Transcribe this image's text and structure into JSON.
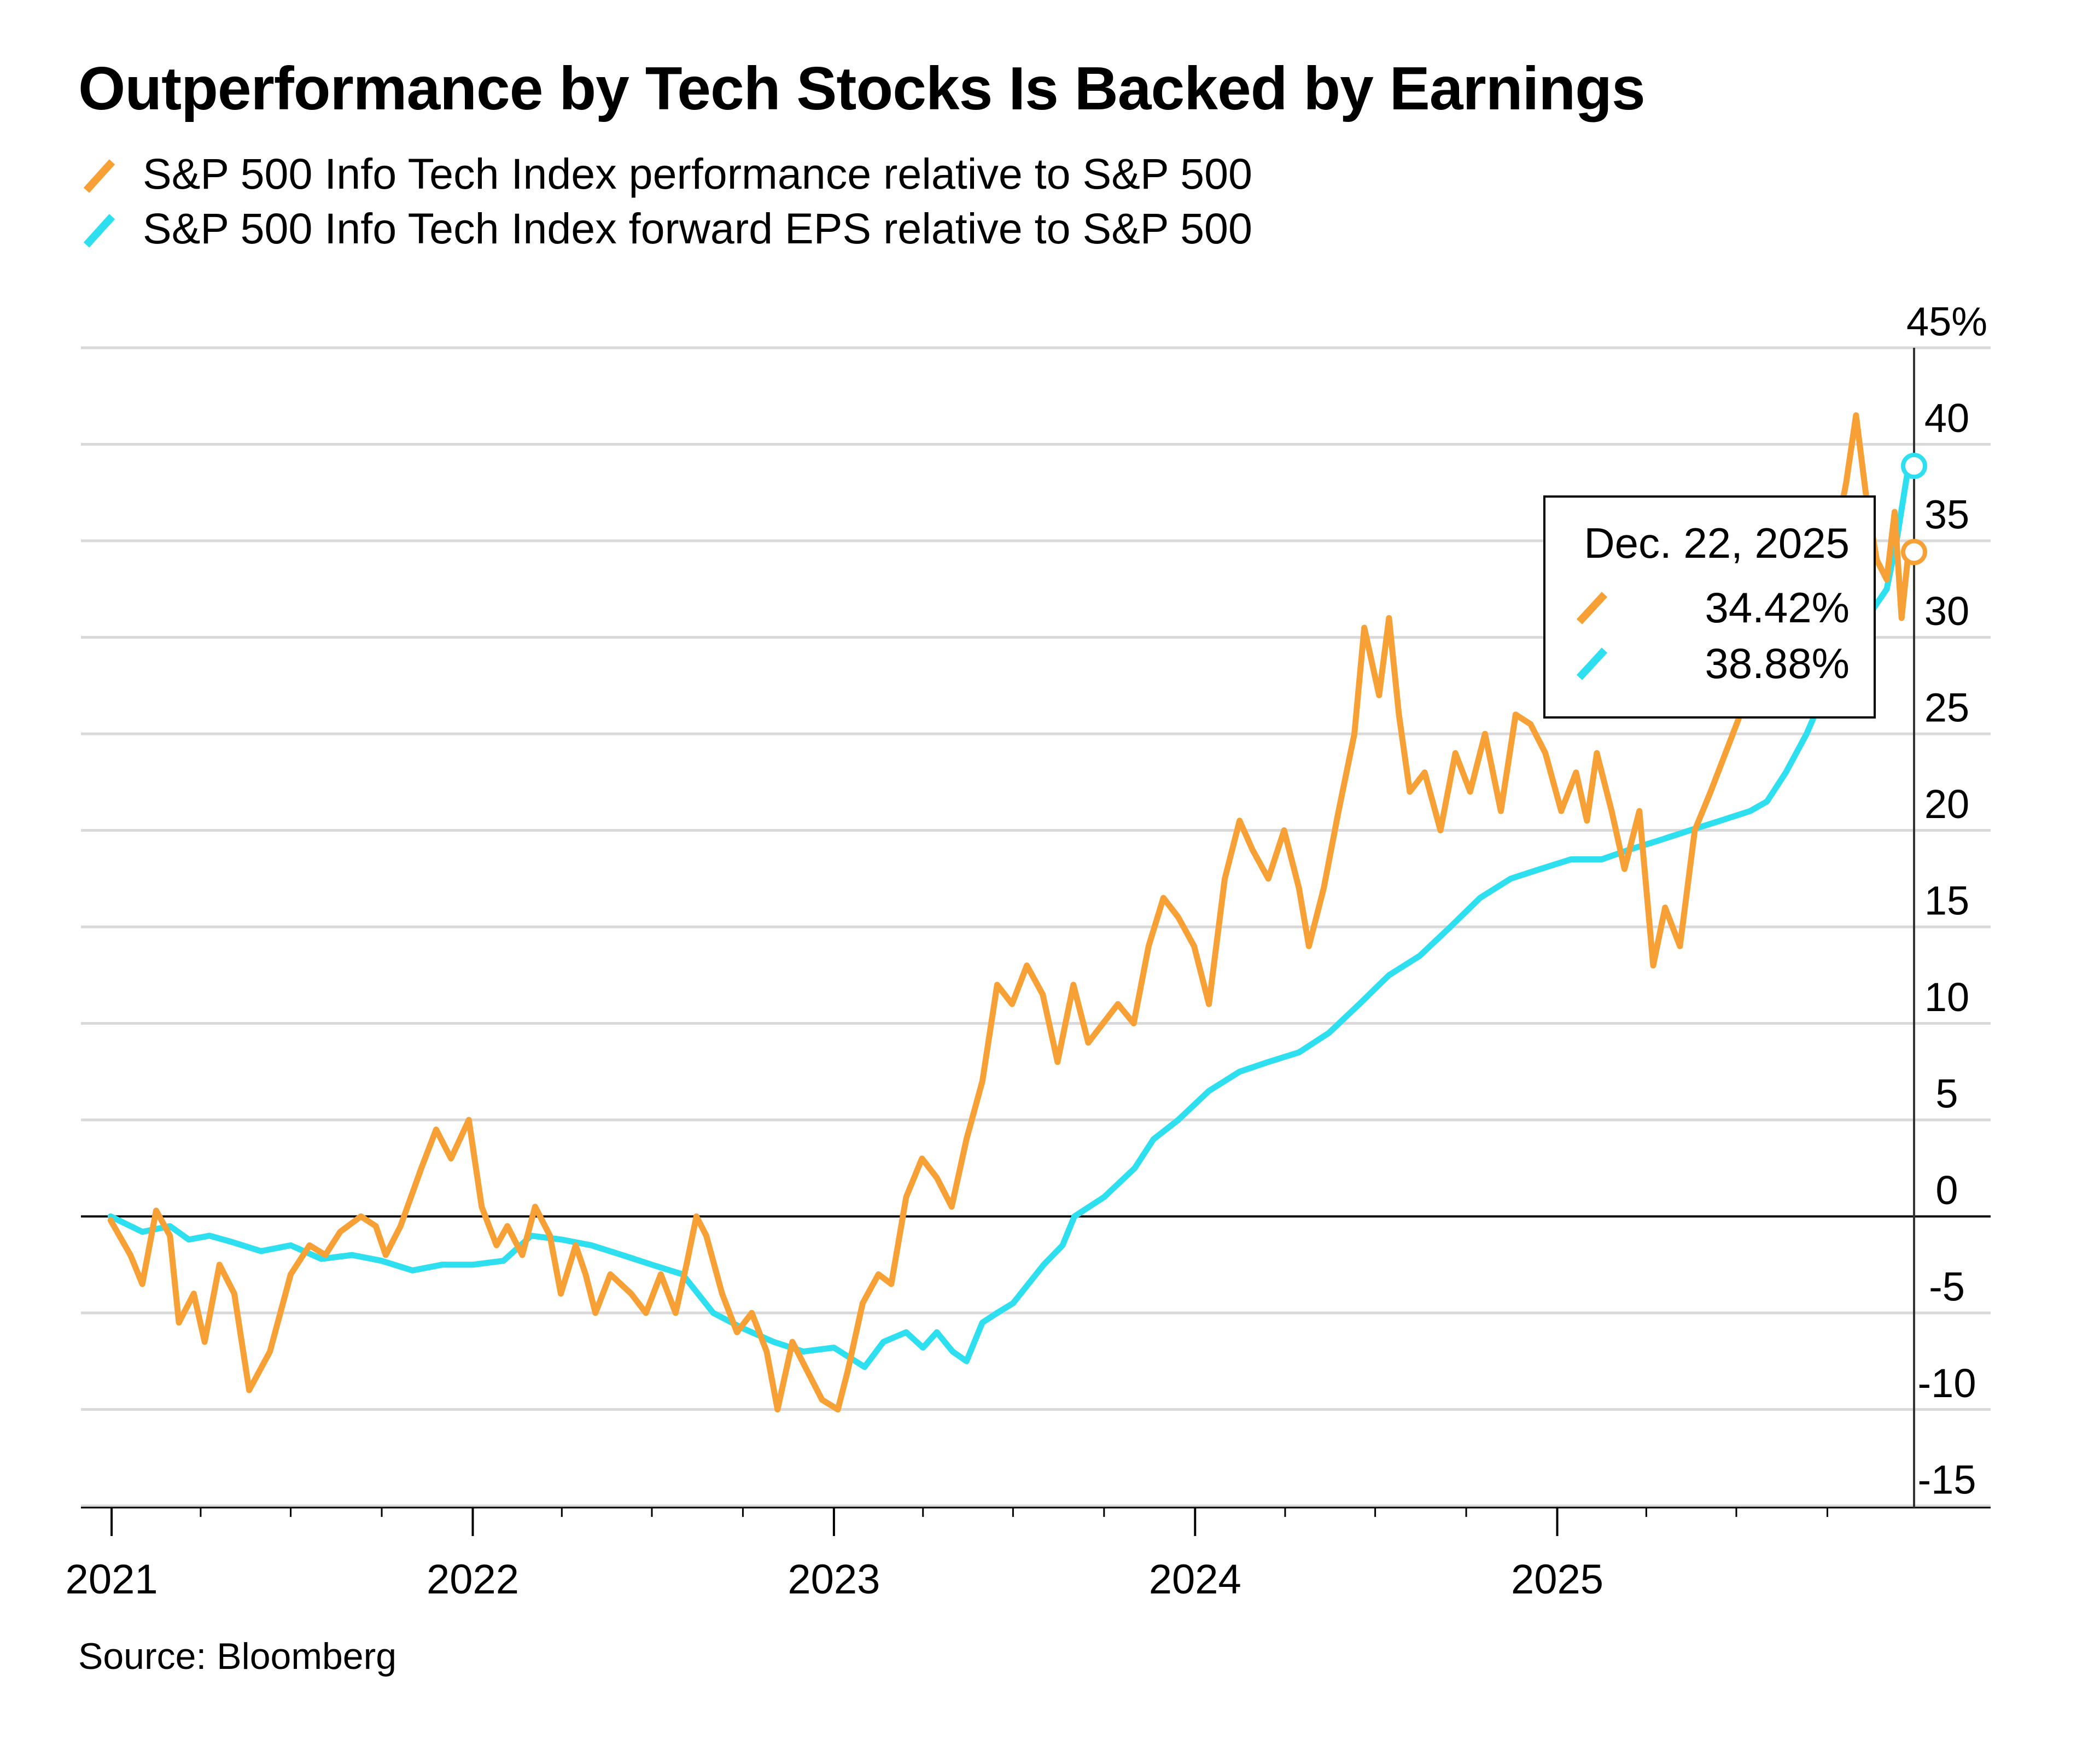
{
  "chart_data": {
    "type": "line",
    "title": "Outperformance by Tech Stocks Is Backed by Earnings",
    "source": "Source: Bloomberg",
    "y_unit": "%",
    "ylim": [
      -15,
      45
    ],
    "yticks": [
      -15,
      -10,
      -5,
      0,
      5,
      10,
      15,
      20,
      25,
      30,
      35,
      40,
      45
    ],
    "ytick_labels": [
      "-15",
      "-10",
      "-5",
      "0",
      "5",
      "10",
      "15",
      "20",
      "25",
      "30",
      "35",
      "40",
      "45%"
    ],
    "xlim": [
      "2020-12-01",
      "2026-03-15"
    ],
    "xtick_labels": [
      "2021",
      "2022",
      "2023",
      "2024",
      "2025"
    ],
    "grid": "horizontal",
    "zero_line": true,
    "series": [
      {
        "name": "S&P 500 Info Tech Index performance relative to S&P 500",
        "color": "#f7a035",
        "points": [
          [
            "2020-12-31",
            -0.2
          ],
          [
            "2021-01-20",
            -2.0
          ],
          [
            "2021-02-01",
            -3.5
          ],
          [
            "2021-02-15",
            0.3
          ],
          [
            "2021-03-01",
            -1.0
          ],
          [
            "2021-03-10",
            -5.5
          ],
          [
            "2021-03-25",
            -4.0
          ],
          [
            "2021-04-05",
            -6.5
          ],
          [
            "2021-04-20",
            -2.5
          ],
          [
            "2021-05-05",
            -4.0
          ],
          [
            "2021-05-20",
            -9.0
          ],
          [
            "2021-06-10",
            -7.0
          ],
          [
            "2021-07-01",
            -3.0
          ],
          [
            "2021-07-20",
            -1.5
          ],
          [
            "2021-08-05",
            -2.0
          ],
          [
            "2021-08-20",
            -0.8
          ],
          [
            "2021-09-10",
            0.0
          ],
          [
            "2021-09-25",
            -0.5
          ],
          [
            "2021-10-05",
            -2.0
          ],
          [
            "2021-10-20",
            -0.5
          ],
          [
            "2021-11-10",
            2.5
          ],
          [
            "2021-11-25",
            4.5
          ],
          [
            "2021-12-10",
            3.0
          ],
          [
            "2021-12-28",
            5.0
          ],
          [
            "2022-01-10",
            0.5
          ],
          [
            "2022-01-25",
            -1.5
          ],
          [
            "2022-02-05",
            -0.5
          ],
          [
            "2022-02-20",
            -2.0
          ],
          [
            "2022-03-05",
            0.5
          ],
          [
            "2022-03-20",
            -1.0
          ],
          [
            "2022-03-31",
            -4.0
          ],
          [
            "2022-04-15",
            -1.5
          ],
          [
            "2022-04-25",
            -3.0
          ],
          [
            "2022-05-05",
            -5.0
          ],
          [
            "2022-05-20",
            -3.0
          ],
          [
            "2022-06-10",
            -4.0
          ],
          [
            "2022-06-25",
            -5.0
          ],
          [
            "2022-07-10",
            -3.0
          ],
          [
            "2022-07-25",
            -5.0
          ],
          [
            "2022-08-05",
            -2.5
          ],
          [
            "2022-08-15",
            0.0
          ],
          [
            "2022-08-25",
            -1.0
          ],
          [
            "2022-09-10",
            -4.0
          ],
          [
            "2022-09-25",
            -6.0
          ],
          [
            "2022-10-10",
            -5.0
          ],
          [
            "2022-10-25",
            -7.0
          ],
          [
            "2022-11-05",
            -10.0
          ],
          [
            "2022-11-20",
            -6.5
          ],
          [
            "2022-12-05",
            -8.0
          ],
          [
            "2022-12-20",
            -9.5
          ],
          [
            "2023-01-05",
            -10.0
          ],
          [
            "2023-01-15",
            -8.0
          ],
          [
            "2023-01-30",
            -4.5
          ],
          [
            "2023-02-15",
            -3.0
          ],
          [
            "2023-02-28",
            -3.5
          ],
          [
            "2023-03-15",
            1.0
          ],
          [
            "2023-03-31",
            3.0
          ],
          [
            "2023-04-15",
            2.0
          ],
          [
            "2023-04-30",
            0.5
          ],
          [
            "2023-05-15",
            4.0
          ],
          [
            "2023-05-31",
            7.0
          ],
          [
            "2023-06-15",
            12.0
          ],
          [
            "2023-06-30",
            11.0
          ],
          [
            "2023-07-15",
            13.0
          ],
          [
            "2023-07-31",
            11.5
          ],
          [
            "2023-08-15",
            8.0
          ],
          [
            "2023-08-31",
            12.0
          ],
          [
            "2023-09-15",
            9.0
          ],
          [
            "2023-09-30",
            10.0
          ],
          [
            "2023-10-15",
            11.0
          ],
          [
            "2023-10-31",
            10.0
          ],
          [
            "2023-11-15",
            14.0
          ],
          [
            "2023-11-30",
            16.5
          ],
          [
            "2023-12-15",
            15.5
          ],
          [
            "2023-12-31",
            14.0
          ],
          [
            "2024-01-15",
            11.0
          ],
          [
            "2024-01-31",
            17.5
          ],
          [
            "2024-02-15",
            20.5
          ],
          [
            "2024-02-28",
            19.0
          ],
          [
            "2024-03-15",
            17.5
          ],
          [
            "2024-03-31",
            20.0
          ],
          [
            "2024-04-15",
            17.0
          ],
          [
            "2024-04-25",
            14.0
          ],
          [
            "2024-05-10",
            17.0
          ],
          [
            "2024-05-25",
            21.0
          ],
          [
            "2024-06-10",
            25.0
          ],
          [
            "2024-06-20",
            30.5
          ],
          [
            "2024-07-05",
            27.0
          ],
          [
            "2024-07-15",
            31.0
          ],
          [
            "2024-07-25",
            26.0
          ],
          [
            "2024-08-05",
            22.0
          ],
          [
            "2024-08-20",
            23.0
          ],
          [
            "2024-09-05",
            20.0
          ],
          [
            "2024-09-20",
            24.0
          ],
          [
            "2024-10-05",
            22.0
          ],
          [
            "2024-10-20",
            25.0
          ],
          [
            "2024-11-05",
            21.0
          ],
          [
            "2024-11-20",
            26.0
          ],
          [
            "2024-12-05",
            25.5
          ],
          [
            "2024-12-20",
            24.0
          ],
          [
            "2025-01-05",
            21.0
          ],
          [
            "2025-01-20",
            23.0
          ],
          [
            "2025-01-31",
            20.5
          ],
          [
            "2025-02-10",
            24.0
          ],
          [
            "2025-02-25",
            21.0
          ],
          [
            "2025-03-10",
            18.0
          ],
          [
            "2025-03-25",
            21.0
          ],
          [
            "2025-04-08",
            13.0
          ],
          [
            "2025-04-20",
            16.0
          ],
          [
            "2025-05-05",
            14.0
          ],
          [
            "2025-05-20",
            20.0
          ],
          [
            "2025-06-05",
            22.0
          ],
          [
            "2025-06-20",
            24.0
          ],
          [
            "2025-07-05",
            26.0
          ],
          [
            "2025-07-20",
            28.0
          ],
          [
            "2025-08-05",
            30.0
          ],
          [
            "2025-08-20",
            32.0
          ],
          [
            "2025-09-05",
            33.0
          ],
          [
            "2025-09-20",
            35.5
          ],
          [
            "2025-10-05",
            34.0
          ],
          [
            "2025-10-20",
            38.0
          ],
          [
            "2025-10-30",
            41.5
          ],
          [
            "2025-11-10",
            37.0
          ],
          [
            "2025-11-20",
            34.0
          ],
          [
            "2025-11-30",
            33.0
          ],
          [
            "2025-12-08",
            36.5
          ],
          [
            "2025-12-15",
            31.0
          ],
          [
            "2025-12-22",
            34.42
          ]
        ]
      },
      {
        "name": "S&P 500 Info Tech Index forward EPS relative to S&P 500",
        "color": "#2ee0ef",
        "points": [
          [
            "2020-12-31",
            0.0
          ],
          [
            "2021-02-01",
            -0.8
          ],
          [
            "2021-03-01",
            -0.5
          ],
          [
            "2021-03-20",
            -1.2
          ],
          [
            "2021-04-10",
            -1.0
          ],
          [
            "2021-05-01",
            -1.3
          ],
          [
            "2021-06-01",
            -1.8
          ],
          [
            "2021-07-01",
            -1.5
          ],
          [
            "2021-08-01",
            -2.2
          ],
          [
            "2021-09-01",
            -2.0
          ],
          [
            "2021-10-01",
            -2.3
          ],
          [
            "2021-11-01",
            -2.8
          ],
          [
            "2021-12-01",
            -2.5
          ],
          [
            "2022-01-01",
            -2.5
          ],
          [
            "2022-02-01",
            -2.3
          ],
          [
            "2022-03-01",
            -1.0
          ],
          [
            "2022-04-01",
            -1.2
          ],
          [
            "2022-05-01",
            -1.5
          ],
          [
            "2022-06-01",
            -2.0
          ],
          [
            "2022-07-01",
            -2.5
          ],
          [
            "2022-08-01",
            -3.0
          ],
          [
            "2022-09-01",
            -5.0
          ],
          [
            "2022-10-01",
            -5.8
          ],
          [
            "2022-11-01",
            -6.5
          ],
          [
            "2022-12-01",
            -7.0
          ],
          [
            "2023-01-01",
            -6.8
          ],
          [
            "2023-02-01",
            -7.8
          ],
          [
            "2023-02-20",
            -6.5
          ],
          [
            "2023-03-15",
            -6.0
          ],
          [
            "2023-04-01",
            -6.8
          ],
          [
            "2023-04-15",
            -6.0
          ],
          [
            "2023-05-01",
            -7.0
          ],
          [
            "2023-05-15",
            -7.5
          ],
          [
            "2023-05-31",
            -5.5
          ],
          [
            "2023-06-15",
            -5.0
          ],
          [
            "2023-07-01",
            -4.5
          ],
          [
            "2023-08-01",
            -2.5
          ],
          [
            "2023-08-20",
            -1.5
          ],
          [
            "2023-09-01",
            0.0
          ],
          [
            "2023-10-01",
            1.0
          ],
          [
            "2023-11-01",
            2.5
          ],
          [
            "2023-11-20",
            4.0
          ],
          [
            "2023-12-15",
            5.0
          ],
          [
            "2024-01-15",
            6.5
          ],
          [
            "2024-02-15",
            7.5
          ],
          [
            "2024-03-15",
            8.0
          ],
          [
            "2024-04-15",
            8.5
          ],
          [
            "2024-05-15",
            9.5
          ],
          [
            "2024-06-15",
            11.0
          ],
          [
            "2024-07-15",
            12.5
          ],
          [
            "2024-08-15",
            13.5
          ],
          [
            "2024-09-15",
            15.0
          ],
          [
            "2024-10-15",
            16.5
          ],
          [
            "2024-11-15",
            17.5
          ],
          [
            "2024-12-15",
            18.0
          ],
          [
            "2025-01-15",
            18.5
          ],
          [
            "2025-02-15",
            18.5
          ],
          [
            "2025-03-15",
            19.0
          ],
          [
            "2025-04-15",
            19.5
          ],
          [
            "2025-05-15",
            20.0
          ],
          [
            "2025-06-15",
            20.5
          ],
          [
            "2025-07-15",
            21.0
          ],
          [
            "2025-08-01",
            21.5
          ],
          [
            "2025-08-20",
            23.0
          ],
          [
            "2025-09-10",
            25.0
          ],
          [
            "2025-10-01",
            27.5
          ],
          [
            "2025-10-20",
            29.5
          ],
          [
            "2025-11-10",
            31.0
          ],
          [
            "2025-11-30",
            32.5
          ],
          [
            "2025-12-10",
            35.0
          ],
          [
            "2025-12-22",
            38.88
          ]
        ]
      }
    ],
    "tooltip": {
      "date": "Dec. 22, 2025",
      "values": [
        "34.42%",
        "38.88%"
      ]
    }
  }
}
